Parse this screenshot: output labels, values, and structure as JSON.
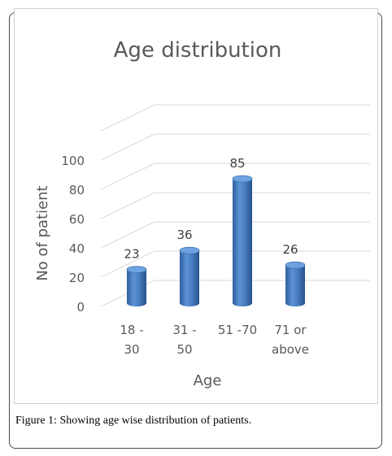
{
  "caption": {
    "label": "Figure 1:",
    "text": "Showing age wise distribution of patients."
  },
  "chart_data": {
    "type": "bar",
    "title": "Age distribution",
    "xlabel": "Age",
    "ylabel": "No of patient",
    "categories": [
      [
        "18 -",
        "30"
      ],
      [
        "31 -",
        "50"
      ],
      [
        "51 -70"
      ],
      [
        "71 or",
        "above"
      ]
    ],
    "values": [
      23,
      36,
      85,
      26
    ],
    "yticks": [
      0,
      20,
      40,
      60,
      80,
      100
    ],
    "ylim": [
      0,
      120
    ],
    "grid": true,
    "style": "3d-cylinder",
    "bar_color": "#4a7fc1"
  }
}
